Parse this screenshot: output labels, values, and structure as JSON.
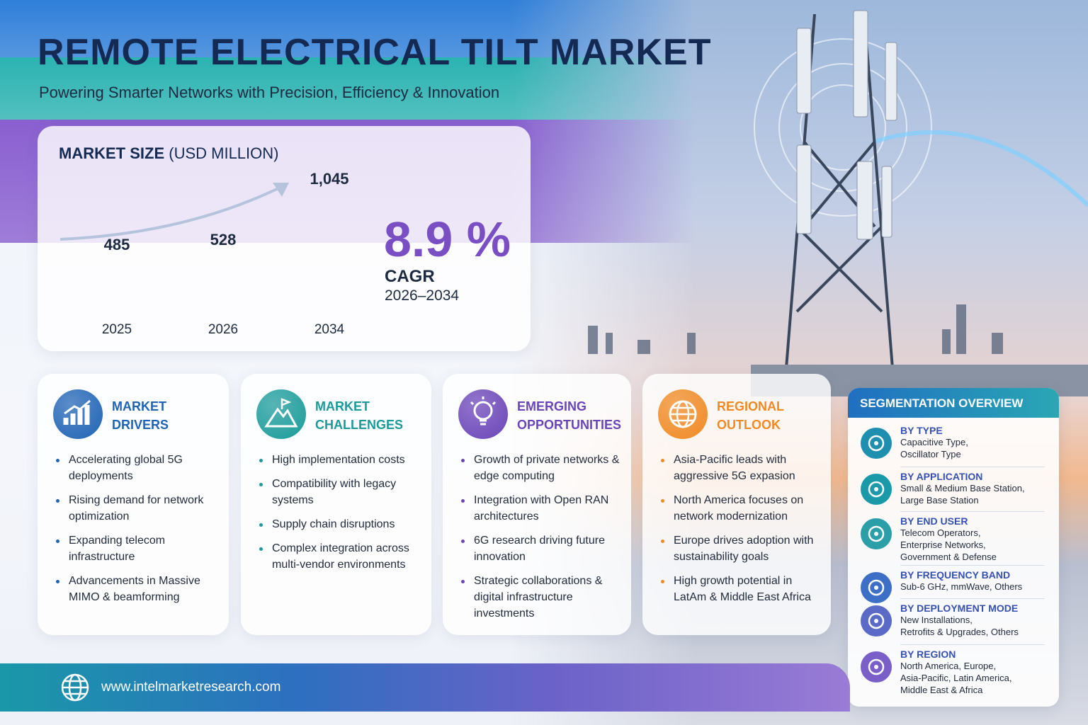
{
  "header": {
    "title": "REMOTE ELECTRICAL TILT MARKET",
    "subtitle": "Powering Smarter Networks with Precision, Efficiency & Innovation"
  },
  "market_size": {
    "title": "MARKET SIZE",
    "unit": "(USD MILLION)",
    "categories": [
      "2025",
      "2026",
      "2034"
    ],
    "values": [
      485,
      528,
      1045
    ],
    "value_labels": [
      "485",
      "528",
      "1,045"
    ],
    "colors": [
      "#2f7fd9",
      "#2bb3b1",
      "#8a5fd0"
    ]
  },
  "cagr": {
    "value": "8.9 %",
    "label": "CAGR",
    "period": "2026–2034"
  },
  "cards": [
    {
      "title_lines": [
        "MARKET",
        "DRIVERS"
      ],
      "color": "#1f63b5",
      "items": [
        "Accelerating global 5G deployments",
        "Rising demand for network optimization",
        "Expanding telecom infrastructure",
        "Advancements in Massive MIMO & beamforming"
      ]
    },
    {
      "title_lines": [
        "MARKET",
        "CHALLENGES"
      ],
      "color": "#1a9a9a",
      "items": [
        "High implementation costs",
        "Compatibility with legacy systems",
        "Supply chain disruptions",
        "Complex integration across multi-vendor environments"
      ]
    },
    {
      "title_lines": [
        "EMERGING",
        "OPPORTUNITIES"
      ],
      "color": "#6a44b8",
      "items": [
        "Growth of private networks & edge computing",
        "Integration with Open RAN architectures",
        "6G research driving future innovation",
        "Strategic collaborations & digital infrastructure investments"
      ]
    },
    {
      "title_lines": [
        "REGIONAL",
        "OUTLOOK"
      ],
      "color": "#f08a24",
      "items": [
        "Asia-Pacific leads with aggressive 5G expasion",
        "North America focuses on network modernization",
        "Europe drives adoption with sustainability goals",
        "High growth potential in LatAm & Middle East Africa"
      ]
    }
  ],
  "segmentation": {
    "title": "SEGMENTATION OVERVIEW",
    "items": [
      {
        "heading": "BY TYPE",
        "lines": [
          "Capacitive Type,",
          "Oscillator Type"
        ]
      },
      {
        "heading": "BY APPLICATION",
        "lines": [
          "Small & Medium Base Station,",
          "Large Base Station"
        ]
      },
      {
        "heading": "BY END USER",
        "lines": [
          "Telecom Operators,",
          "Enterprise Networks,",
          "Government & Defense"
        ]
      },
      {
        "heading": "BY FREQUENCY BAND",
        "lines": [
          "Sub-6 GHz, mmWave, Others"
        ]
      },
      {
        "heading": "BY DEPLOYMENT MODE",
        "lines": [
          "New Installations,",
          "Retrofits & Upgrades, Others"
        ]
      },
      {
        "heading": "BY REGION",
        "lines": [
          "North America, Europe,",
          "Asia-Pacific, Latin America,",
          "Middle East & Africa"
        ]
      }
    ]
  },
  "footer": {
    "url": "www.intelmarketresearch.com"
  }
}
